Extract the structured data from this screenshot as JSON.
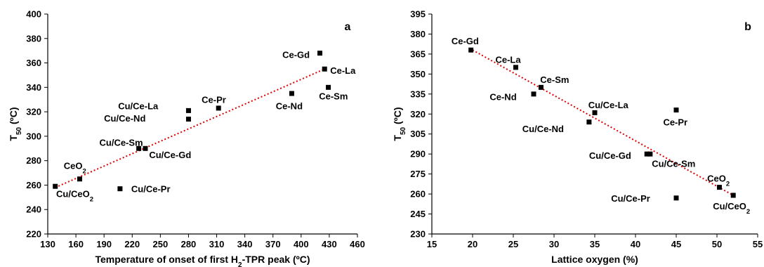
{
  "chart_data": [
    {
      "type": "scatter",
      "panel_label": "a",
      "xlabel": "Temperature of onset of first H2-TPR peak (ºC)",
      "xlabel_parts": [
        "Temperature of onset of first H",
        "2",
        "-TPR peak (ºC)"
      ],
      "ylabel": "T50 (ºC)",
      "ylabel_parts": [
        "T",
        "50",
        " (ºC)"
      ],
      "xlim": [
        130,
        460
      ],
      "ylim": [
        220,
        400
      ],
      "xticks": [
        130,
        160,
        190,
        220,
        250,
        280,
        310,
        340,
        370,
        400,
        430,
        460
      ],
      "yticks": [
        220,
        240,
        260,
        280,
        300,
        320,
        340,
        360,
        380,
        400
      ],
      "grid": false,
      "trendline": [
        [
          138,
          258
        ],
        [
          425,
          355
        ]
      ],
      "points": [
        {
          "label": "Cu/CeO2",
          "label_parts": [
            "Cu/CeO",
            "2"
          ],
          "x": 138,
          "y": 259,
          "lx": 139,
          "ly": 253,
          "anchor": "start"
        },
        {
          "label": "CeO2",
          "label_parts": [
            "CeO",
            "2"
          ],
          "x": 164,
          "y": 265,
          "lx": 147,
          "ly": 276,
          "anchor": "start"
        },
        {
          "label": "Cu/Ce-Pr",
          "x": 207,
          "y": 257,
          "lx": 219,
          "ly": 257,
          "anchor": "start"
        },
        {
          "label": "Cu/Ce-Sm",
          "x": 227,
          "y": 290,
          "lx": 185,
          "ly": 295,
          "anchor": "start"
        },
        {
          "label": "Cu/Ce-Gd",
          "x": 234,
          "y": 290,
          "lx": 238,
          "ly": 285,
          "anchor": "start"
        },
        {
          "label": "Cu/Ce-La",
          "x": 280,
          "y": 321,
          "lx": 205,
          "ly": 325,
          "anchor": "start"
        },
        {
          "label": "Cu/Ce-Nd",
          "x": 280,
          "y": 314,
          "lx": 190,
          "ly": 315,
          "anchor": "start"
        },
        {
          "label": "Ce-Pr",
          "x": 312,
          "y": 323,
          "lx": 294,
          "ly": 330,
          "anchor": "start"
        },
        {
          "label": "Ce-Nd",
          "x": 390,
          "y": 335,
          "lx": 373,
          "ly": 325,
          "anchor": "start"
        },
        {
          "label": "Ce-Gd",
          "x": 420,
          "y": 368,
          "lx": 380,
          "ly": 367,
          "anchor": "start"
        },
        {
          "label": "Ce-La",
          "x": 425,
          "y": 355,
          "lx": 431,
          "ly": 354,
          "anchor": "start"
        },
        {
          "label": "Ce-Sm",
          "x": 429,
          "y": 340,
          "lx": 419,
          "ly": 333,
          "anchor": "start"
        }
      ]
    },
    {
      "type": "scatter",
      "panel_label": "b",
      "xlabel": "Lattice oxygen (%)",
      "xlabel_parts": [
        "Lattice oxygen (%)",
        "",
        ""
      ],
      "ylabel": "T50 (ºC)",
      "ylabel_parts": [
        "T",
        "50",
        " (ºC)"
      ],
      "xlim": [
        15,
        55
      ],
      "ylim": [
        230,
        395
      ],
      "xticks": [
        15,
        20,
        25,
        30,
        35,
        40,
        45,
        50,
        55
      ],
      "yticks": [
        230,
        245,
        260,
        275,
        290,
        305,
        320,
        335,
        350,
        365,
        380,
        395
      ],
      "grid": false,
      "trendline": [
        [
          20,
          368
        ],
        [
          52,
          259
        ]
      ],
      "points": [
        {
          "label": "Ce-Gd",
          "x": 19.8,
          "y": 368,
          "lx": 17.4,
          "ly": 375,
          "anchor": "start"
        },
        {
          "label": "Ce-La",
          "x": 25.3,
          "y": 355,
          "lx": 22.8,
          "ly": 361,
          "anchor": "start"
        },
        {
          "label": "Ce-Sm",
          "x": 28.4,
          "y": 340,
          "lx": 28.3,
          "ly": 346,
          "anchor": "start"
        },
        {
          "label": "Ce-Nd",
          "x": 27.5,
          "y": 335,
          "lx": 22.1,
          "ly": 333,
          "anchor": "start"
        },
        {
          "label": "Cu/Ce-La",
          "x": 35.0,
          "y": 321,
          "lx": 34.2,
          "ly": 327,
          "anchor": "start"
        },
        {
          "label": "Cu/Ce-Nd",
          "x": 34.3,
          "y": 314,
          "lx": 26.1,
          "ly": 309,
          "anchor": "start"
        },
        {
          "label": "Ce-Pr",
          "x": 45.0,
          "y": 323,
          "lx": 43.4,
          "ly": 314,
          "anchor": "start"
        },
        {
          "label": "Cu/Ce-Gd",
          "x": 41.4,
          "y": 290,
          "lx": 34.3,
          "ly": 289,
          "anchor": "start"
        },
        {
          "label": "Cu/Ce-Sm",
          "x": 41.8,
          "y": 290,
          "lx": 42.0,
          "ly": 283,
          "anchor": "start"
        },
        {
          "label": "CeO2",
          "label_parts": [
            "CeO",
            "2"
          ],
          "x": 50.3,
          "y": 265,
          "lx": 48.8,
          "ly": 272,
          "anchor": "start"
        },
        {
          "label": "Cu/Ce-Pr",
          "x": 45.0,
          "y": 257,
          "lx": 37.0,
          "ly": 257,
          "anchor": "start"
        },
        {
          "label": "Cu/CeO2",
          "label_parts": [
            "Cu/CeO",
            "2"
          ],
          "x": 52.0,
          "y": 259,
          "lx": 49.5,
          "ly": 251,
          "anchor": "start"
        }
      ]
    }
  ]
}
